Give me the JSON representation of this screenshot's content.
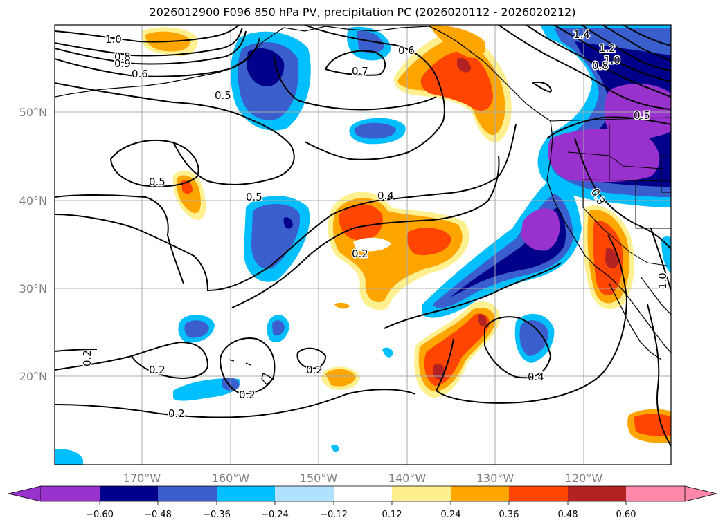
{
  "title": "2026012900 F096 850 hPa PV, precipitation PC (2026020112 - 2026020212)",
  "map": {
    "lat_labels": [
      "50°N",
      "40°N",
      "30°N",
      "20°N"
    ],
    "lon_labels": [
      "170°W",
      "160°W",
      "150°W",
      "140°W",
      "130°W",
      "120°W"
    ],
    "contour_labels": [
      "1.0",
      "0.8",
      "0.9",
      "0.6",
      "0.5",
      "0.5",
      "0.5",
      "0.4",
      "0.2",
      "0.7",
      "0.6",
      "0.2",
      "0.2",
      "0.2",
      "0.2",
      "0.2",
      "0.4",
      "1.4",
      "1.2",
      "1.0",
      "0.8",
      "0.5",
      "0.3",
      "1.0",
      "0.2"
    ],
    "precip_colors": {
      "neg_extend": "#9932cc",
      "neg_060": "#00008b",
      "neg_048": "#3a5fcd",
      "neg_036": "#00bfff",
      "neg_024": "#b0e2ff",
      "neutral": "#ffffff",
      "pos_012": "#fff08f",
      "pos_024": "#ffa500",
      "pos_036": "#ff4500",
      "pos_048": "#b22222",
      "pos_extend": "#ff88aa"
    }
  },
  "colorbar": {
    "ticks": [
      "−0.60",
      "−0.48",
      "−0.36",
      "−0.24",
      "−0.12",
      "0.12",
      "0.24",
      "0.36",
      "0.48",
      "0.60"
    ]
  }
}
